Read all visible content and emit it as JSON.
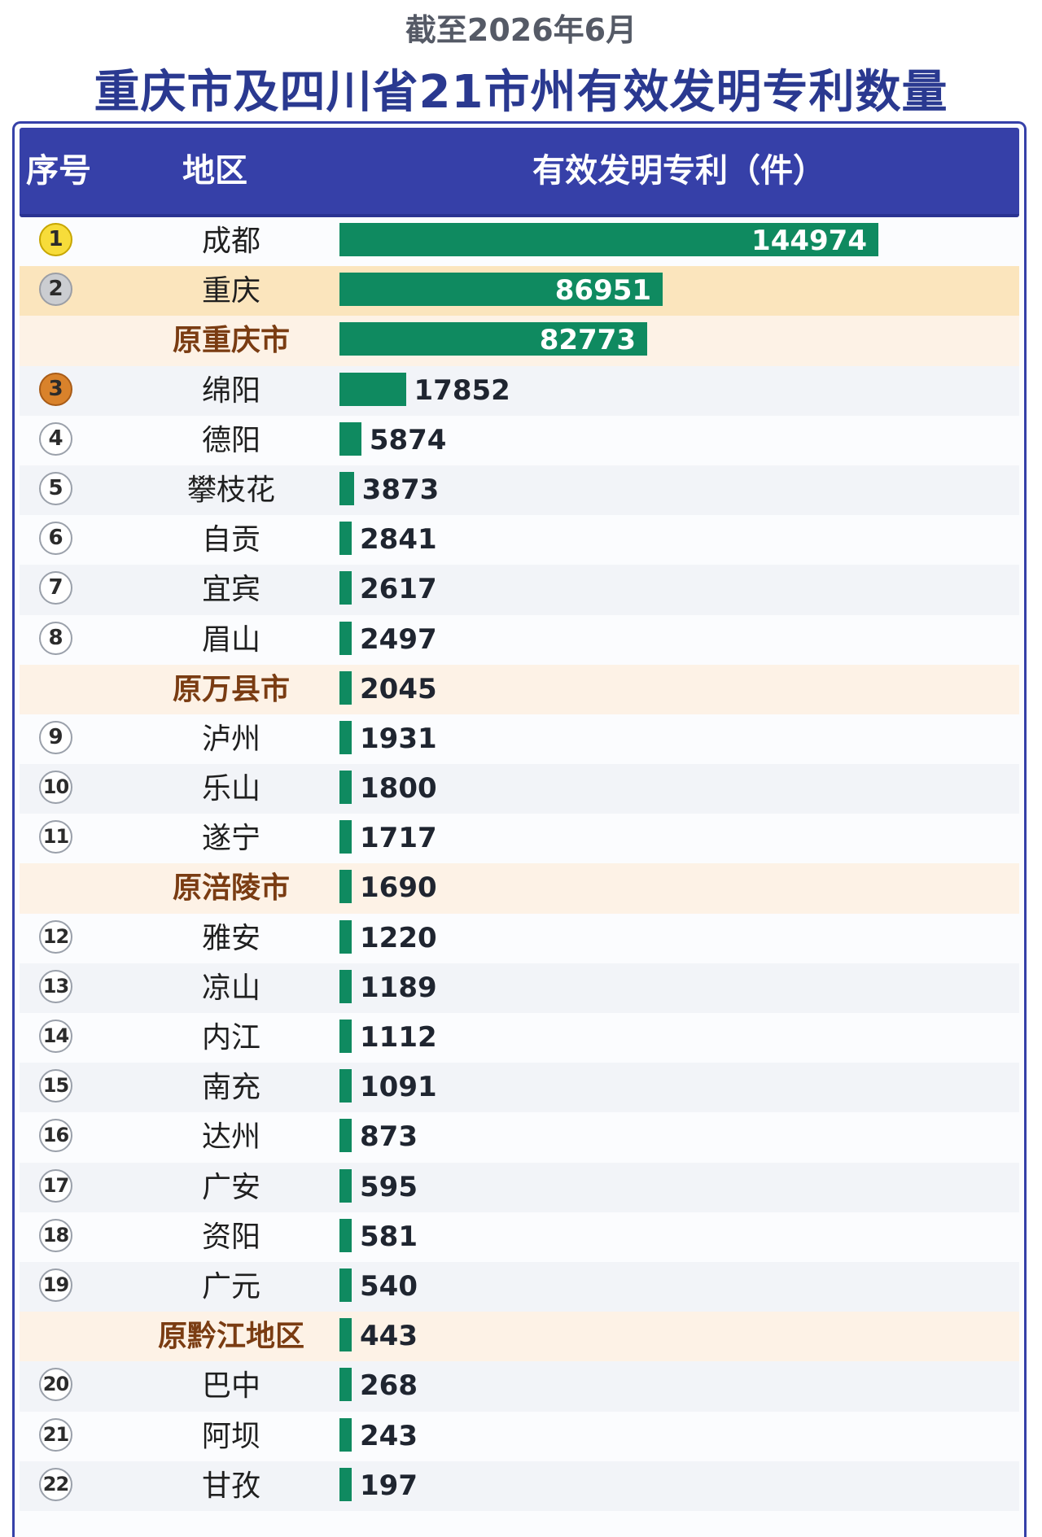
{
  "date_line": "截至2026年6月",
  "title": "重庆市及四川省21市州有效发明专利数量",
  "header": {
    "rank": "序号",
    "region": "地区",
    "value": "有效发明专利（件）"
  },
  "colors": {
    "header_bg": "#3640a8",
    "title": "#2a3990",
    "bar": "#0f8a60",
    "former_text": "#7a3c12",
    "gold": "#f7dc3a",
    "silver": "#cbcdd1",
    "bronze": "#d9822b"
  },
  "chart_data": {
    "type": "bar",
    "orientation": "horizontal",
    "title": "重庆市及四川省21市州有效发明专利数量",
    "subtitle": "截至2026年6月",
    "value_axis_label": "有效发明专利（件）",
    "categories": [
      "成都",
      "重庆",
      "原重庆市",
      "绵阳",
      "德阳",
      "攀枝花",
      "自贡",
      "宜宾",
      "眉山",
      "原万县市",
      "泸州",
      "乐山",
      "遂宁",
      "原涪陵市",
      "雅安",
      "凉山",
      "内江",
      "南充",
      "达州",
      "广安",
      "资阳",
      "广元",
      "原黔江地区",
      "巴中",
      "阿坝",
      "甘孜"
    ],
    "values": [
      144974,
      86951,
      82773,
      17852,
      5874,
      3873,
      2841,
      2617,
      2497,
      2045,
      1931,
      1800,
      1717,
      1690,
      1220,
      1189,
      1112,
      1091,
      873,
      595,
      581,
      540,
      443,
      268,
      243,
      197
    ],
    "ranks": [
      "1",
      "2",
      "",
      "3",
      "4",
      "5",
      "6",
      "7",
      "8",
      "",
      "9",
      "10",
      "11",
      "",
      "12",
      "13",
      "14",
      "15",
      "16",
      "17",
      "18",
      "19",
      "",
      "20",
      "21",
      "22"
    ],
    "row_kind": [
      "gold",
      "silver",
      "former",
      "bronze",
      "normal",
      "normal",
      "normal",
      "normal",
      "normal",
      "former",
      "normal",
      "normal",
      "normal",
      "former",
      "normal",
      "normal",
      "normal",
      "normal",
      "normal",
      "normal",
      "normal",
      "normal",
      "former",
      "normal",
      "normal",
      "normal"
    ],
    "xlim": [
      0,
      144974
    ]
  }
}
